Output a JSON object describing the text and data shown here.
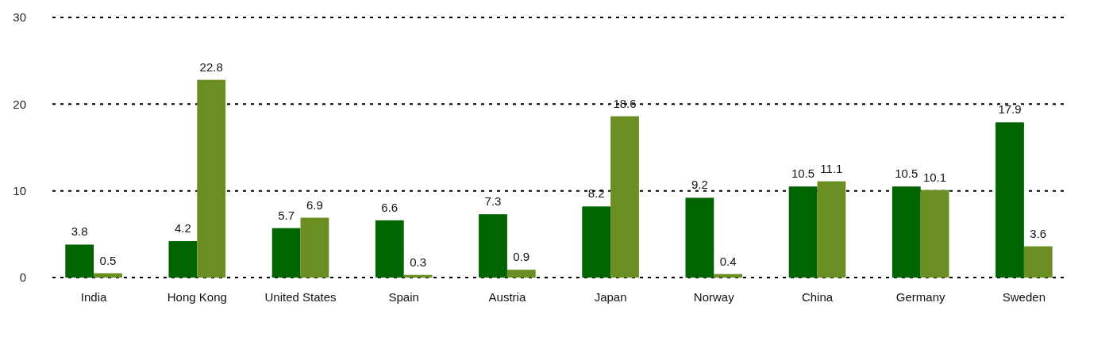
{
  "chart_data": {
    "type": "bar",
    "categories": [
      "India",
      "Hong Kong",
      "United States",
      "Spain",
      "Austria",
      "Japan",
      "Norway",
      "China",
      "Germany",
      "Sweden"
    ],
    "series": [
      {
        "color": "#006400",
        "values": [
          3.8,
          4.2,
          5.7,
          6.6,
          7.3,
          8.2,
          9.2,
          10.5,
          10.5,
          17.9
        ]
      },
      {
        "color": "#6b8e23",
        "values": [
          0.5,
          22.8,
          6.9,
          0.3,
          0.9,
          18.6,
          0.4,
          11.1,
          10.1,
          3.6
        ]
      }
    ],
    "ylim": [
      0,
      30
    ],
    "yticks": [
      0,
      10,
      20,
      30
    ],
    "grid": "y",
    "data_labels": true
  }
}
